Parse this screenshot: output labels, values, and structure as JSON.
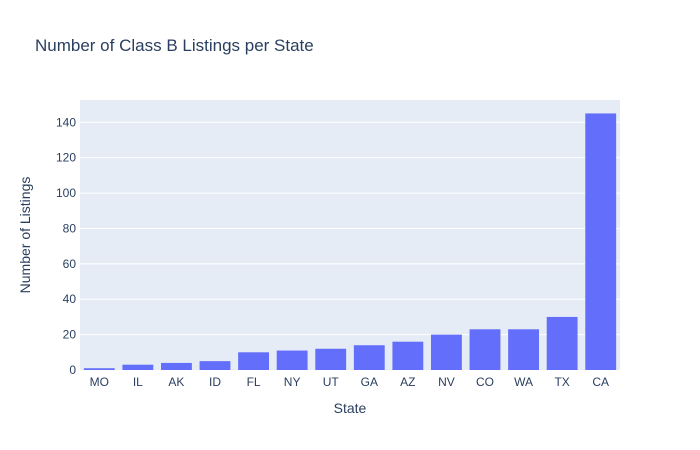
{
  "chart_data": {
    "type": "bar",
    "title": "Number of Class B Listings per State",
    "xlabel": "State",
    "ylabel": "Number of Listings",
    "categories": [
      "MO",
      "IL",
      "AK",
      "ID",
      "FL",
      "NY",
      "UT",
      "GA",
      "AZ",
      "NV",
      "CO",
      "WA",
      "TX",
      "CA"
    ],
    "values": [
      1,
      3,
      4,
      5,
      10,
      11,
      12,
      14,
      16,
      20,
      23,
      23,
      30,
      145
    ],
    "ylim": [
      0,
      152.6
    ],
    "yticks": [
      0,
      20,
      40,
      60,
      80,
      100,
      120,
      140
    ],
    "bar_color": "#636efa",
    "plot_background": "#e5ecf6",
    "grid": true
  }
}
